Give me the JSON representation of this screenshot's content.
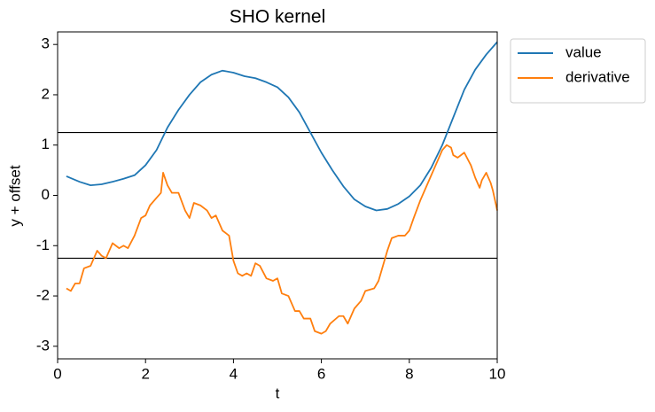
{
  "chart_data": {
    "type": "line",
    "title": "SHO kernel",
    "xlabel": "t",
    "ylabel": "y + offset",
    "xlim": [
      0,
      10
    ],
    "ylim": [
      -3.25,
      3.25
    ],
    "xticks": [
      0,
      2,
      4,
      6,
      8,
      10
    ],
    "yticks": [
      -3,
      -2,
      -1,
      0,
      1,
      2,
      3
    ],
    "hlines": [
      1.25,
      -1.25
    ],
    "legend": "outside-upper-right",
    "series": [
      {
        "name": "value",
        "color": "#1f77b4",
        "x": [
          0.2,
          0.5,
          0.75,
          1.0,
          1.25,
          1.5,
          1.75,
          2.0,
          2.25,
          2.5,
          2.75,
          3.0,
          3.25,
          3.5,
          3.75,
          4.0,
          4.25,
          4.5,
          4.75,
          5.0,
          5.25,
          5.5,
          5.75,
          6.0,
          6.25,
          6.5,
          6.75,
          7.0,
          7.25,
          7.5,
          7.75,
          8.0,
          8.25,
          8.5,
          8.75,
          9.0,
          9.25,
          9.5,
          9.75,
          10.0
        ],
        "values": [
          0.38,
          0.27,
          0.2,
          0.22,
          0.27,
          0.33,
          0.4,
          0.6,
          0.9,
          1.35,
          1.7,
          2.0,
          2.25,
          2.4,
          2.48,
          2.44,
          2.37,
          2.33,
          2.25,
          2.15,
          1.95,
          1.65,
          1.25,
          0.85,
          0.5,
          0.18,
          -0.08,
          -0.22,
          -0.3,
          -0.27,
          -0.17,
          -0.02,
          0.2,
          0.55,
          1.0,
          1.55,
          2.1,
          2.5,
          2.8,
          3.05
        ]
      },
      {
        "name": "derivative",
        "color": "#ff7f0e",
        "x": [
          0.2,
          0.3,
          0.4,
          0.5,
          0.6,
          0.75,
          0.9,
          1.0,
          1.1,
          1.25,
          1.4,
          1.5,
          1.6,
          1.75,
          1.9,
          2.0,
          2.1,
          2.25,
          2.35,
          2.4,
          2.5,
          2.6,
          2.75,
          2.9,
          3.0,
          3.1,
          3.25,
          3.4,
          3.5,
          3.6,
          3.75,
          3.9,
          4.0,
          4.1,
          4.2,
          4.3,
          4.4,
          4.5,
          4.6,
          4.75,
          4.9,
          5.0,
          5.1,
          5.25,
          5.4,
          5.5,
          5.6,
          5.75,
          5.85,
          6.0,
          6.1,
          6.2,
          6.4,
          6.5,
          6.6,
          6.75,
          6.9,
          7.0,
          7.2,
          7.3,
          7.4,
          7.5,
          7.6,
          7.75,
          7.9,
          8.0,
          8.1,
          8.25,
          8.4,
          8.5,
          8.6,
          8.75,
          8.85,
          8.95,
          9.0,
          9.1,
          9.25,
          9.4,
          9.5,
          9.6,
          9.65,
          9.75,
          9.85,
          9.9,
          10.0
        ],
        "values": [
          -1.85,
          -1.9,
          -1.75,
          -1.75,
          -1.45,
          -1.4,
          -1.1,
          -1.2,
          -1.25,
          -0.95,
          -1.05,
          -1.0,
          -1.05,
          -0.8,
          -0.45,
          -0.4,
          -0.2,
          -0.05,
          0.05,
          0.45,
          0.2,
          0.05,
          0.05,
          -0.3,
          -0.45,
          -0.15,
          -0.2,
          -0.3,
          -0.45,
          -0.4,
          -0.7,
          -0.8,
          -1.3,
          -1.55,
          -1.6,
          -1.55,
          -1.6,
          -1.35,
          -1.4,
          -1.65,
          -1.7,
          -1.65,
          -1.95,
          -2.0,
          -2.3,
          -2.3,
          -2.45,
          -2.45,
          -2.7,
          -2.75,
          -2.7,
          -2.55,
          -2.4,
          -2.4,
          -2.55,
          -2.25,
          -2.1,
          -1.9,
          -1.85,
          -1.7,
          -1.4,
          -1.1,
          -0.85,
          -0.8,
          -0.8,
          -0.7,
          -0.45,
          -0.1,
          0.2,
          0.4,
          0.6,
          0.9,
          1.0,
          0.95,
          0.8,
          0.75,
          0.85,
          0.6,
          0.35,
          0.15,
          0.3,
          0.45,
          0.25,
          0.1,
          -0.3
        ]
      }
    ]
  }
}
